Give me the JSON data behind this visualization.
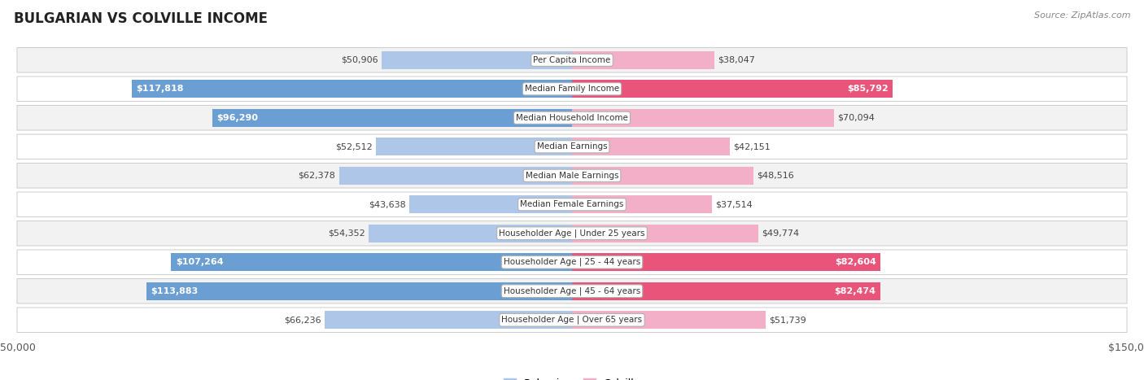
{
  "title": "BULGARIAN VS COLVILLE INCOME",
  "source": "Source: ZipAtlas.com",
  "categories": [
    "Per Capita Income",
    "Median Family Income",
    "Median Household Income",
    "Median Earnings",
    "Median Male Earnings",
    "Median Female Earnings",
    "Householder Age | Under 25 years",
    "Householder Age | 25 - 44 years",
    "Householder Age | 45 - 64 years",
    "Householder Age | Over 65 years"
  ],
  "bulgarian_values": [
    50906,
    117818,
    96290,
    52512,
    62378,
    43638,
    54352,
    107264,
    113883,
    66236
  ],
  "colville_values": [
    38047,
    85792,
    70094,
    42151,
    48516,
    37514,
    49774,
    82604,
    82474,
    51739
  ],
  "bulgarian_labels": [
    "$50,906",
    "$117,818",
    "$96,290",
    "$52,512",
    "$62,378",
    "$43,638",
    "$54,352",
    "$107,264",
    "$113,883",
    "$66,236"
  ],
  "colville_labels": [
    "$38,047",
    "$85,792",
    "$70,094",
    "$42,151",
    "$48,516",
    "$37,514",
    "$49,774",
    "$82,604",
    "$82,474",
    "$51,739"
  ],
  "bulgarian_color_light": "#aec6e8",
  "bulgarian_color_dark": "#6b9fd4",
  "colville_color_light": "#f4afc8",
  "colville_color_dark": "#e8547a",
  "max_value": 150000,
  "background_color": "#ffffff",
  "title_fontsize": 12,
  "label_fontsize": 8,
  "cat_fontsize": 7.5,
  "axis_label_fontsize": 9,
  "legend_fontsize": 9,
  "threshold_dark_label": 75000,
  "row_colors": [
    "#f2f2f2",
    "#ffffff"
  ],
  "row_border_color": "#cccccc"
}
